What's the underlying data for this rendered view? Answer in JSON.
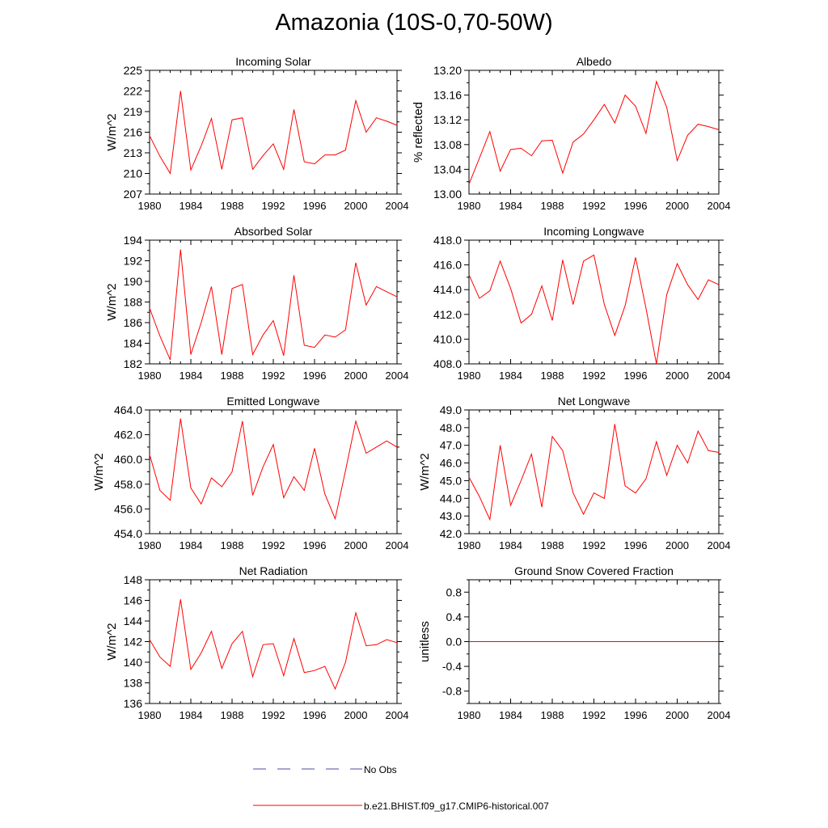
{
  "page": {
    "title": "Amazonia (10S-0,70-50W)"
  },
  "legend": [
    {
      "label": "No Obs",
      "color": "#4a4aa8",
      "style": "dashed"
    },
    {
      "label": "b.e21.BHIST.f09_g17.CMIP6-historical.007",
      "color": "#ff0000",
      "style": "solid"
    }
  ],
  "chart_data": [
    {
      "type": "line",
      "title": "Incoming Solar",
      "ylabel": "W/m^2",
      "xlim": [
        1980,
        2004
      ],
      "ylim": [
        207,
        225
      ],
      "x_ticks": [
        1980,
        1984,
        1988,
        1992,
        1996,
        2000,
        2004
      ],
      "y_ticks": [
        "207",
        "210",
        "213",
        "216",
        "219",
        "222",
        "225"
      ],
      "series": [
        {
          "color": "#ff0000",
          "x": [
            1980,
            1981,
            1982,
            1983,
            1984,
            1985,
            1986,
            1987,
            1988,
            1989,
            1990,
            1991,
            1992,
            1993,
            1994,
            1995,
            1996,
            1997,
            1998,
            1999,
            2000,
            2001,
            2002,
            2003,
            2004
          ],
          "values": [
            215.5,
            212.5,
            210.0,
            222.0,
            210.5,
            214.0,
            218.0,
            210.6,
            217.8,
            218.1,
            210.6,
            212.6,
            214.3,
            210.6,
            219.3,
            211.7,
            211.4,
            212.7,
            212.7,
            213.4,
            220.6,
            216.0,
            218.1,
            217.6,
            217.0
          ]
        }
      ]
    },
    {
      "type": "line",
      "title": "Albedo",
      "ylabel": "% reflected",
      "xlim": [
        1980,
        2004
      ],
      "ylim": [
        13.0,
        13.2
      ],
      "x_ticks": [
        1980,
        1984,
        1988,
        1992,
        1996,
        2000,
        2004
      ],
      "y_ticks": [
        "13.00",
        "13.04",
        "13.08",
        "13.12",
        "13.16",
        "13.20"
      ],
      "series": [
        {
          "color": "#ff0000",
          "x": [
            1980,
            1981,
            1982,
            1983,
            1984,
            1985,
            1986,
            1987,
            1988,
            1989,
            1990,
            1991,
            1992,
            1993,
            1994,
            1995,
            1996,
            1997,
            1998,
            1999,
            2000,
            2001,
            2002,
            2003,
            2004
          ],
          "values": [
            13.016,
            13.058,
            13.101,
            13.037,
            13.072,
            13.074,
            13.062,
            13.086,
            13.087,
            13.034,
            13.084,
            13.097,
            13.12,
            13.145,
            13.115,
            13.16,
            13.142,
            13.098,
            13.182,
            13.14,
            13.054,
            13.095,
            13.113,
            13.109,
            13.104
          ]
        }
      ]
    },
    {
      "type": "line",
      "title": "Absorbed Solar",
      "ylabel": "W/m^2",
      "xlim": [
        1980,
        2004
      ],
      "ylim": [
        182,
        194
      ],
      "x_ticks": [
        1980,
        1984,
        1988,
        1992,
        1996,
        2000,
        2004
      ],
      "y_ticks": [
        "182",
        "184",
        "186",
        "188",
        "190",
        "192",
        "194"
      ],
      "series": [
        {
          "color": "#ff0000",
          "x": [
            1980,
            1981,
            1982,
            1983,
            1984,
            1985,
            1986,
            1987,
            1988,
            1989,
            1990,
            1991,
            1992,
            1993,
            1994,
            1995,
            1996,
            1997,
            1998,
            1999,
            2000,
            2001,
            2002,
            2003,
            2004
          ],
          "values": [
            187.4,
            184.7,
            182.4,
            193.1,
            182.9,
            186.0,
            189.5,
            182.9,
            189.3,
            189.7,
            182.9,
            184.8,
            186.2,
            182.8,
            190.6,
            183.8,
            183.6,
            184.8,
            184.6,
            185.3,
            191.8,
            187.7,
            189.5,
            189.0,
            188.5
          ]
        }
      ]
    },
    {
      "type": "line",
      "title": "Incoming Longwave",
      "ylabel": "",
      "xlim": [
        1980,
        2004
      ],
      "ylim": [
        408,
        418
      ],
      "x_ticks": [
        1980,
        1984,
        1988,
        1992,
        1996,
        2000,
        2004
      ],
      "y_ticks": [
        "408.0",
        "410.0",
        "412.0",
        "414.0",
        "416.0",
        "418.0"
      ],
      "series": [
        {
          "color": "#ff0000",
          "x": [
            1980,
            1981,
            1982,
            1983,
            1984,
            1985,
            1986,
            1987,
            1988,
            1989,
            1990,
            1991,
            1992,
            1993,
            1994,
            1995,
            1996,
            1997,
            1998,
            1999,
            2000,
            2001,
            2002,
            2003,
            2004
          ],
          "values": [
            415.2,
            413.3,
            413.9,
            416.3,
            414.1,
            411.3,
            412.0,
            414.3,
            411.5,
            416.4,
            412.8,
            416.3,
            416.8,
            412.8,
            410.3,
            412.7,
            416.6,
            412.5,
            408.0,
            413.6,
            416.1,
            414.4,
            413.2,
            414.8,
            414.4
          ]
        }
      ]
    },
    {
      "type": "line",
      "title": "Emitted Longwave",
      "ylabel": "W/m^2",
      "xlim": [
        1980,
        2004
      ],
      "ylim": [
        454,
        464
      ],
      "x_ticks": [
        1980,
        1984,
        1988,
        1992,
        1996,
        2000,
        2004
      ],
      "y_ticks": [
        "454.0",
        "456.0",
        "458.0",
        "460.0",
        "462.0",
        "464.0"
      ],
      "series": [
        {
          "color": "#ff0000",
          "x": [
            1980,
            1981,
            1982,
            1983,
            1984,
            1985,
            1986,
            1987,
            1988,
            1989,
            1990,
            1991,
            1992,
            1993,
            1994,
            1995,
            1996,
            1997,
            1998,
            1999,
            2000,
            2001,
            2002,
            2003,
            2004
          ],
          "values": [
            460.4,
            457.5,
            456.7,
            463.3,
            457.7,
            456.4,
            458.5,
            457.8,
            459.0,
            463.1,
            457.1,
            459.4,
            461.2,
            456.9,
            458.6,
            457.5,
            460.9,
            457.2,
            455.2,
            459.1,
            463.1,
            460.5,
            461.0,
            461.5,
            461.0
          ]
        }
      ]
    },
    {
      "type": "line",
      "title": "Net Longwave",
      "ylabel": "W/m^2",
      "xlim": [
        1980,
        2004
      ],
      "ylim": [
        42,
        49
      ],
      "x_ticks": [
        1980,
        1984,
        1988,
        1992,
        1996,
        2000,
        2004
      ],
      "y_ticks": [
        "42.0",
        "43.0",
        "44.0",
        "45.0",
        "46.0",
        "47.0",
        "48.0",
        "49.0"
      ],
      "series": [
        {
          "color": "#ff0000",
          "x": [
            1980,
            1981,
            1982,
            1983,
            1984,
            1985,
            1986,
            1987,
            1988,
            1989,
            1990,
            1991,
            1992,
            1993,
            1994,
            1995,
            1996,
            1997,
            1998,
            1999,
            2000,
            2001,
            2002,
            2003,
            2004
          ],
          "values": [
            45.2,
            44.1,
            42.8,
            47.0,
            43.6,
            45.0,
            46.5,
            43.5,
            47.5,
            46.7,
            44.3,
            43.1,
            44.3,
            44.0,
            48.2,
            44.7,
            44.3,
            45.1,
            47.2,
            45.3,
            47.0,
            46.0,
            47.8,
            46.7,
            46.6
          ]
        }
      ]
    },
    {
      "type": "line",
      "title": "Net Radiation",
      "ylabel": "W/m^2",
      "xlim": [
        1980,
        2004
      ],
      "ylim": [
        136,
        148
      ],
      "x_ticks": [
        1980,
        1984,
        1988,
        1992,
        1996,
        2000,
        2004
      ],
      "y_ticks": [
        "136",
        "138",
        "140",
        "142",
        "144",
        "146",
        "148"
      ],
      "series": [
        {
          "color": "#ff0000",
          "x": [
            1980,
            1981,
            1982,
            1983,
            1984,
            1985,
            1986,
            1987,
            1988,
            1989,
            1990,
            1991,
            1992,
            1993,
            1994,
            1995,
            1996,
            1997,
            1998,
            1999,
            2000,
            2001,
            2002,
            2003,
            2004
          ],
          "values": [
            142.2,
            140.5,
            139.6,
            146.1,
            139.3,
            140.9,
            143.0,
            139.4,
            141.8,
            143.0,
            138.6,
            141.7,
            141.8,
            138.7,
            142.3,
            139.0,
            139.2,
            139.6,
            137.4,
            140.0,
            144.8,
            141.6,
            141.7,
            142.2,
            141.9
          ]
        }
      ]
    },
    {
      "type": "line",
      "title": "Ground Snow Covered Fraction",
      "ylabel": "unitless",
      "xlim": [
        1980,
        2004
      ],
      "ylim": [
        -1.0,
        1.0
      ],
      "x_ticks": [
        1980,
        1984,
        1988,
        1992,
        1996,
        2000,
        2004
      ],
      "y_ticks": [
        "-0.8",
        "-0.4",
        "0.0",
        "0.4",
        "0.8"
      ],
      "series": [
        {
          "color": "#ff0000",
          "x": [
            1980,
            2004
          ],
          "values": [
            0.0,
            0.0
          ]
        }
      ]
    }
  ]
}
